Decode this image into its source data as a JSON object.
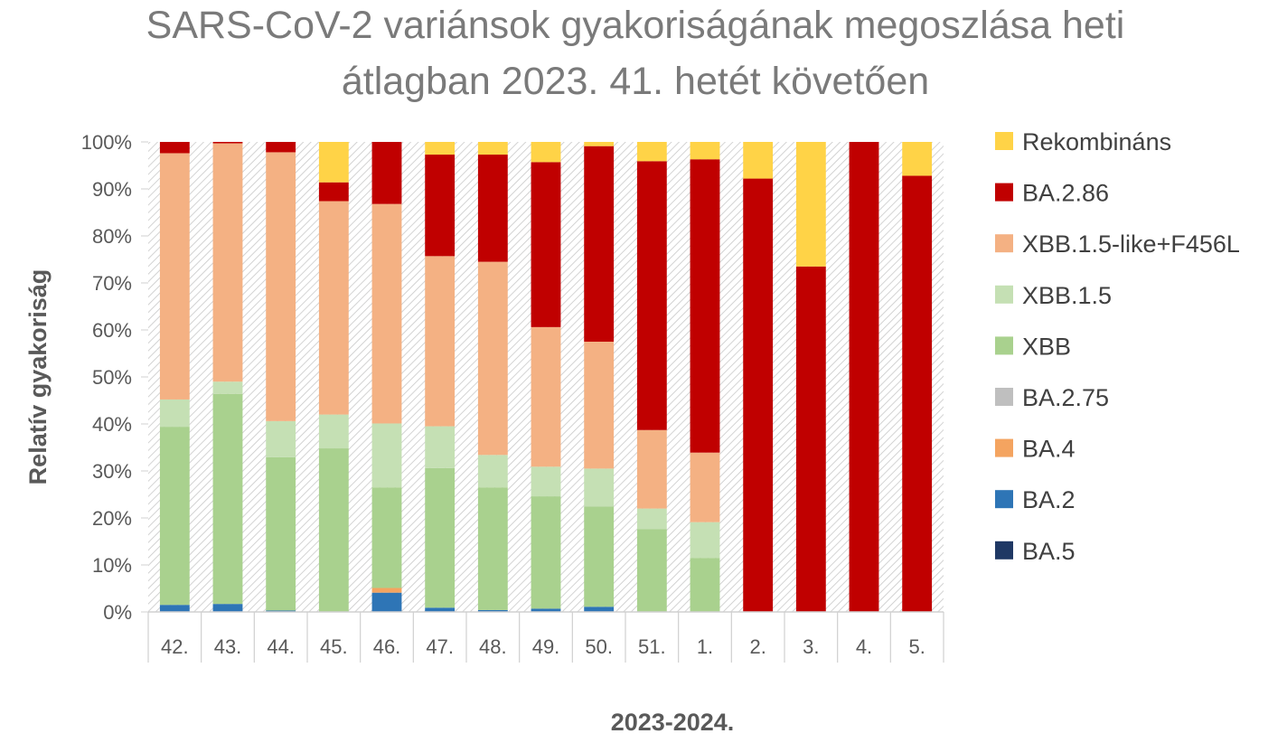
{
  "chart_data": {
    "type": "bar",
    "stacked": true,
    "percent_stacked": true,
    "title_lines": [
      "SARS-CoV-2 variánsok gyakoriságának megoszlása heti",
      "átlagban 2023. 41. hetét követően"
    ],
    "xlabel": "2023-2024.",
    "ylabel": "Relatív gyakoriság",
    "ylim": [
      0,
      100
    ],
    "yticks": [
      "0%",
      "10%",
      "20%",
      "30%",
      "40%",
      "50%",
      "60%",
      "70%",
      "80%",
      "90%",
      "100%"
    ],
    "grid": false,
    "hatched_background": true,
    "legend_position": "right",
    "categories": [
      "42.",
      "43.",
      "44.",
      "45.",
      "46.",
      "47.",
      "48.",
      "49.",
      "50.",
      "51.",
      "1.",
      "2.",
      "3.",
      "4.",
      "5."
    ],
    "series": [
      {
        "name": "BA.5",
        "color": "#1f3864",
        "values": [
          0,
          0,
          0,
          0,
          0,
          0,
          0,
          0,
          0,
          0,
          0,
          0,
          0,
          0,
          0
        ]
      },
      {
        "name": "BA.2",
        "color": "#2e75b6",
        "values": [
          1.5,
          1.7,
          0.3,
          0,
          4.1,
          0.9,
          0.4,
          0.7,
          1.1,
          0,
          0,
          0,
          0,
          0,
          0
        ]
      },
      {
        "name": "BA.4",
        "color": "#f4a460",
        "values": [
          0,
          0,
          0,
          0,
          1.0,
          0,
          0,
          0,
          0,
          0,
          0,
          0,
          0,
          0,
          0
        ]
      },
      {
        "name": "BA.2.75",
        "color": "#bfbfbf",
        "values": [
          0,
          0,
          0,
          0,
          0,
          0,
          0,
          0,
          0,
          0,
          0,
          0,
          0,
          0,
          0
        ]
      },
      {
        "name": "XBB",
        "color": "#a9d18e",
        "values": [
          37.9,
          44.7,
          32.6,
          34.8,
          21.4,
          29.7,
          26.1,
          23.9,
          21.3,
          17.6,
          11.5,
          0,
          0,
          0,
          0
        ]
      },
      {
        "name": "XBB.1.5",
        "color": "#c5e0b4",
        "values": [
          5.8,
          2.6,
          7.7,
          7.2,
          13.6,
          8.9,
          6.9,
          6.3,
          8.1,
          4.4,
          7.6,
          0,
          0,
          0,
          0
        ]
      },
      {
        "name": "XBB.1.5-like+F456L",
        "color": "#f4b183",
        "values": [
          52.4,
          50.7,
          57.2,
          45.4,
          46.7,
          36.2,
          41.1,
          29.7,
          27.0,
          16.7,
          14.8,
          0,
          0,
          0,
          0
        ]
      },
      {
        "name": "BA.2.86",
        "color": "#c00000",
        "values": [
          2.4,
          0.3,
          2.2,
          4.0,
          13.2,
          21.6,
          22.8,
          35.1,
          41.6,
          57.2,
          62.4,
          92.2,
          73.5,
          100,
          92.8
        ]
      },
      {
        "name": "Rekombináns",
        "color": "#ffd347",
        "values": [
          0,
          0,
          0,
          8.6,
          0,
          2.7,
          2.7,
          4.3,
          0.9,
          4.1,
          3.7,
          7.8,
          26.5,
          0,
          7.2
        ]
      }
    ],
    "legend_order": [
      "Rekombináns",
      "BA.2.86",
      "XBB.1.5-like+F456L",
      "XBB.1.5",
      "XBB",
      "BA.2.75",
      "BA.4",
      "BA.2",
      "BA.5"
    ]
  }
}
